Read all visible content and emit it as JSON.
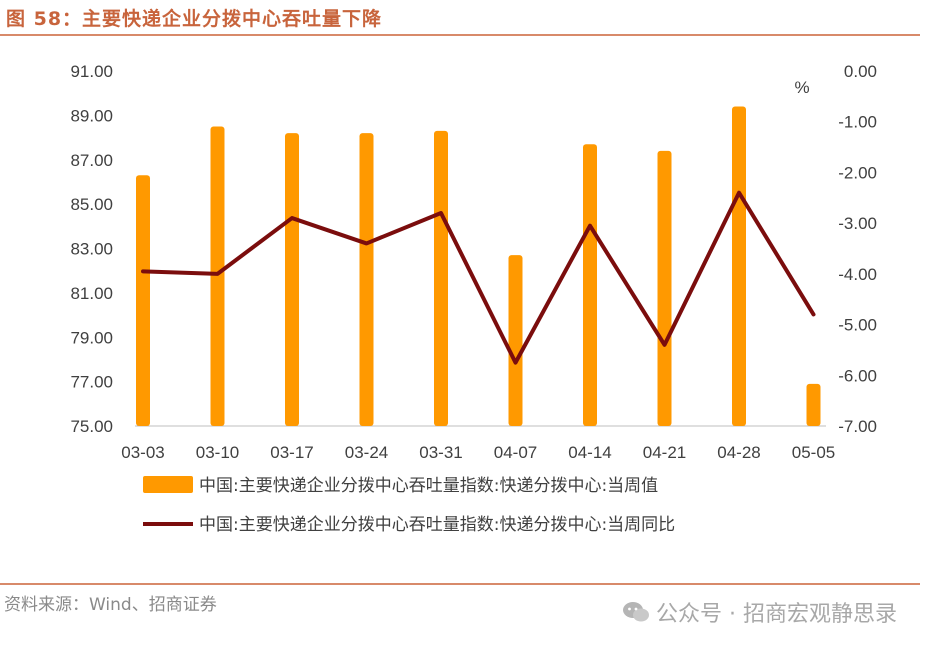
{
  "figure": {
    "title": "图 58：主要快递企业分拨中心吞吐量下降",
    "source": "资料来源：Wind、招商证券",
    "watermark": "公众号 · 招商宏观静思录"
  },
  "chart_data": {
    "type": "bar",
    "categories": [
      "03-03",
      "03-10",
      "03-17",
      "03-24",
      "03-31",
      "04-07",
      "04-14",
      "04-21",
      "04-28",
      "05-05"
    ],
    "series": [
      {
        "name": "中国:主要快递企业分拨中心吞吐量指数:快递分拨中心:当周值",
        "type": "bar",
        "axis": "left",
        "color": "#ff9900",
        "values": [
          86.3,
          88.5,
          88.2,
          88.2,
          88.3,
          82.7,
          87.7,
          87.4,
          89.4,
          76.9
        ]
      },
      {
        "name": "中国:主要快递企业分拨中心吞吐量指数:快递分拨中心:当周同比",
        "type": "line",
        "axis": "right",
        "color": "#7b0d0d",
        "values": [
          -3.95,
          -4.0,
          -2.9,
          -3.4,
          -2.8,
          -5.75,
          -3.05,
          -5.4,
          -2.4,
          -4.8
        ]
      }
    ],
    "yleft": {
      "lim": [
        75,
        91
      ],
      "ticks": [
        "91.00",
        "89.00",
        "87.00",
        "85.00",
        "83.00",
        "81.00",
        "79.00",
        "77.00",
        "75.00"
      ]
    },
    "yright": {
      "label": "%",
      "lim": [
        -7,
        0
      ],
      "ticks": [
        "0.00",
        "-1.00",
        "-2.00",
        "-3.00",
        "-4.00",
        "-5.00",
        "-6.00",
        "-7.00"
      ]
    },
    "grid": false,
    "legend": "bottom"
  }
}
